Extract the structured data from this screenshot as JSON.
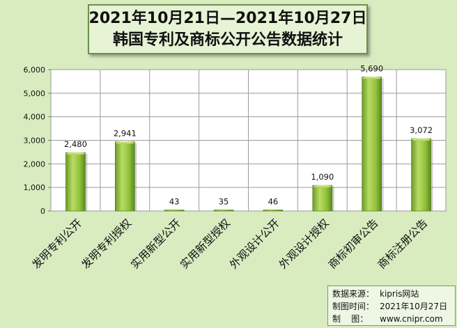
{
  "title": {
    "line1": "2021年10月21日—2021年10月27日",
    "line2": "韩国专利及商标公开公告数据统计"
  },
  "chart_data": {
    "type": "bar",
    "categories": [
      "发明专利公开",
      "发明专利授权",
      "实用新型公开",
      "实用新型授权",
      "外观设计公开",
      "外观设计授权",
      "商标初审公告",
      "商标注册公告"
    ],
    "values": [
      2480,
      2941,
      43,
      35,
      46,
      1090,
      5690,
      3072
    ],
    "value_labels": [
      "2,480",
      "2,941",
      "43",
      "35",
      "46",
      "1,090",
      "5,690",
      "3,072"
    ],
    "ylim": [
      0,
      6000
    ],
    "yticks": [
      0,
      1000,
      2000,
      3000,
      4000,
      5000,
      6000
    ],
    "ytick_labels": [
      "0",
      "1,000",
      "2,000",
      "3,000",
      "4,000",
      "5,000",
      "6,000"
    ],
    "grid": true,
    "colors": {
      "bar_light": "#b8dc64",
      "bar_mid": "#8cbc34",
      "bar_dark": "#5a8a1e",
      "plot_bg": "#ffffff",
      "page_bg": "#d8ecc0"
    }
  },
  "footer": {
    "source_key": "数据来源：",
    "source_val": "kipris网站",
    "time_key": "制图时间：",
    "time_val": "2021年10月27日",
    "maker_key": "制    图：",
    "maker_val": "www.cnipr.com"
  }
}
